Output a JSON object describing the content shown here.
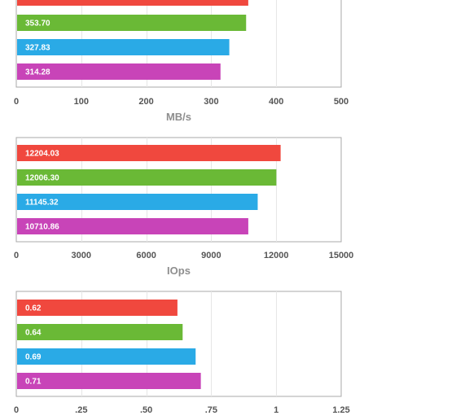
{
  "chart_data": [
    {
      "type": "bar",
      "orientation": "horizontal",
      "xlabel": "MB/s",
      "xlim": [
        0,
        500
      ],
      "ticks": [
        0,
        100,
        200,
        300,
        400,
        500
      ],
      "tick_labels": [
        "0",
        "100",
        "200",
        "300",
        "400",
        "500"
      ],
      "grid": true,
      "values": [
        357,
        353.7,
        327.83,
        314.28
      ],
      "value_labels": [
        "",
        "353.70",
        "327.83",
        "314.28"
      ],
      "colors": [
        "#f0483e",
        "#6ab936",
        "#2aaae6",
        "#c844b8"
      ]
    },
    {
      "type": "bar",
      "orientation": "horizontal",
      "xlabel": "IOps",
      "xlim": [
        0,
        15000
      ],
      "ticks": [
        0,
        3000,
        6000,
        9000,
        12000,
        15000
      ],
      "tick_labels": [
        "0",
        "3000",
        "6000",
        "9000",
        "12000",
        "15000"
      ],
      "grid": true,
      "values": [
        12204.03,
        12006.3,
        11145.32,
        10710.86
      ],
      "value_labels": [
        "12204.03",
        "12006.30",
        "11145.32",
        "10710.86"
      ],
      "colors": [
        "#f0483e",
        "#6ab936",
        "#2aaae6",
        "#c844b8"
      ]
    },
    {
      "type": "bar",
      "orientation": "horizontal",
      "xlabel": "",
      "xlim": [
        0,
        1.25
      ],
      "ticks": [
        0,
        0.25,
        0.5,
        0.75,
        1,
        1.25
      ],
      "tick_labels": [
        "0",
        ".25",
        ".50",
        ".75",
        "1",
        "1.25"
      ],
      "grid": true,
      "values": [
        0.62,
        0.64,
        0.69,
        0.71
      ],
      "value_labels": [
        "0.62",
        "0.64",
        "0.69",
        "0.71"
      ],
      "colors": [
        "#f0483e",
        "#6ab936",
        "#2aaae6",
        "#c844b8"
      ]
    }
  ]
}
